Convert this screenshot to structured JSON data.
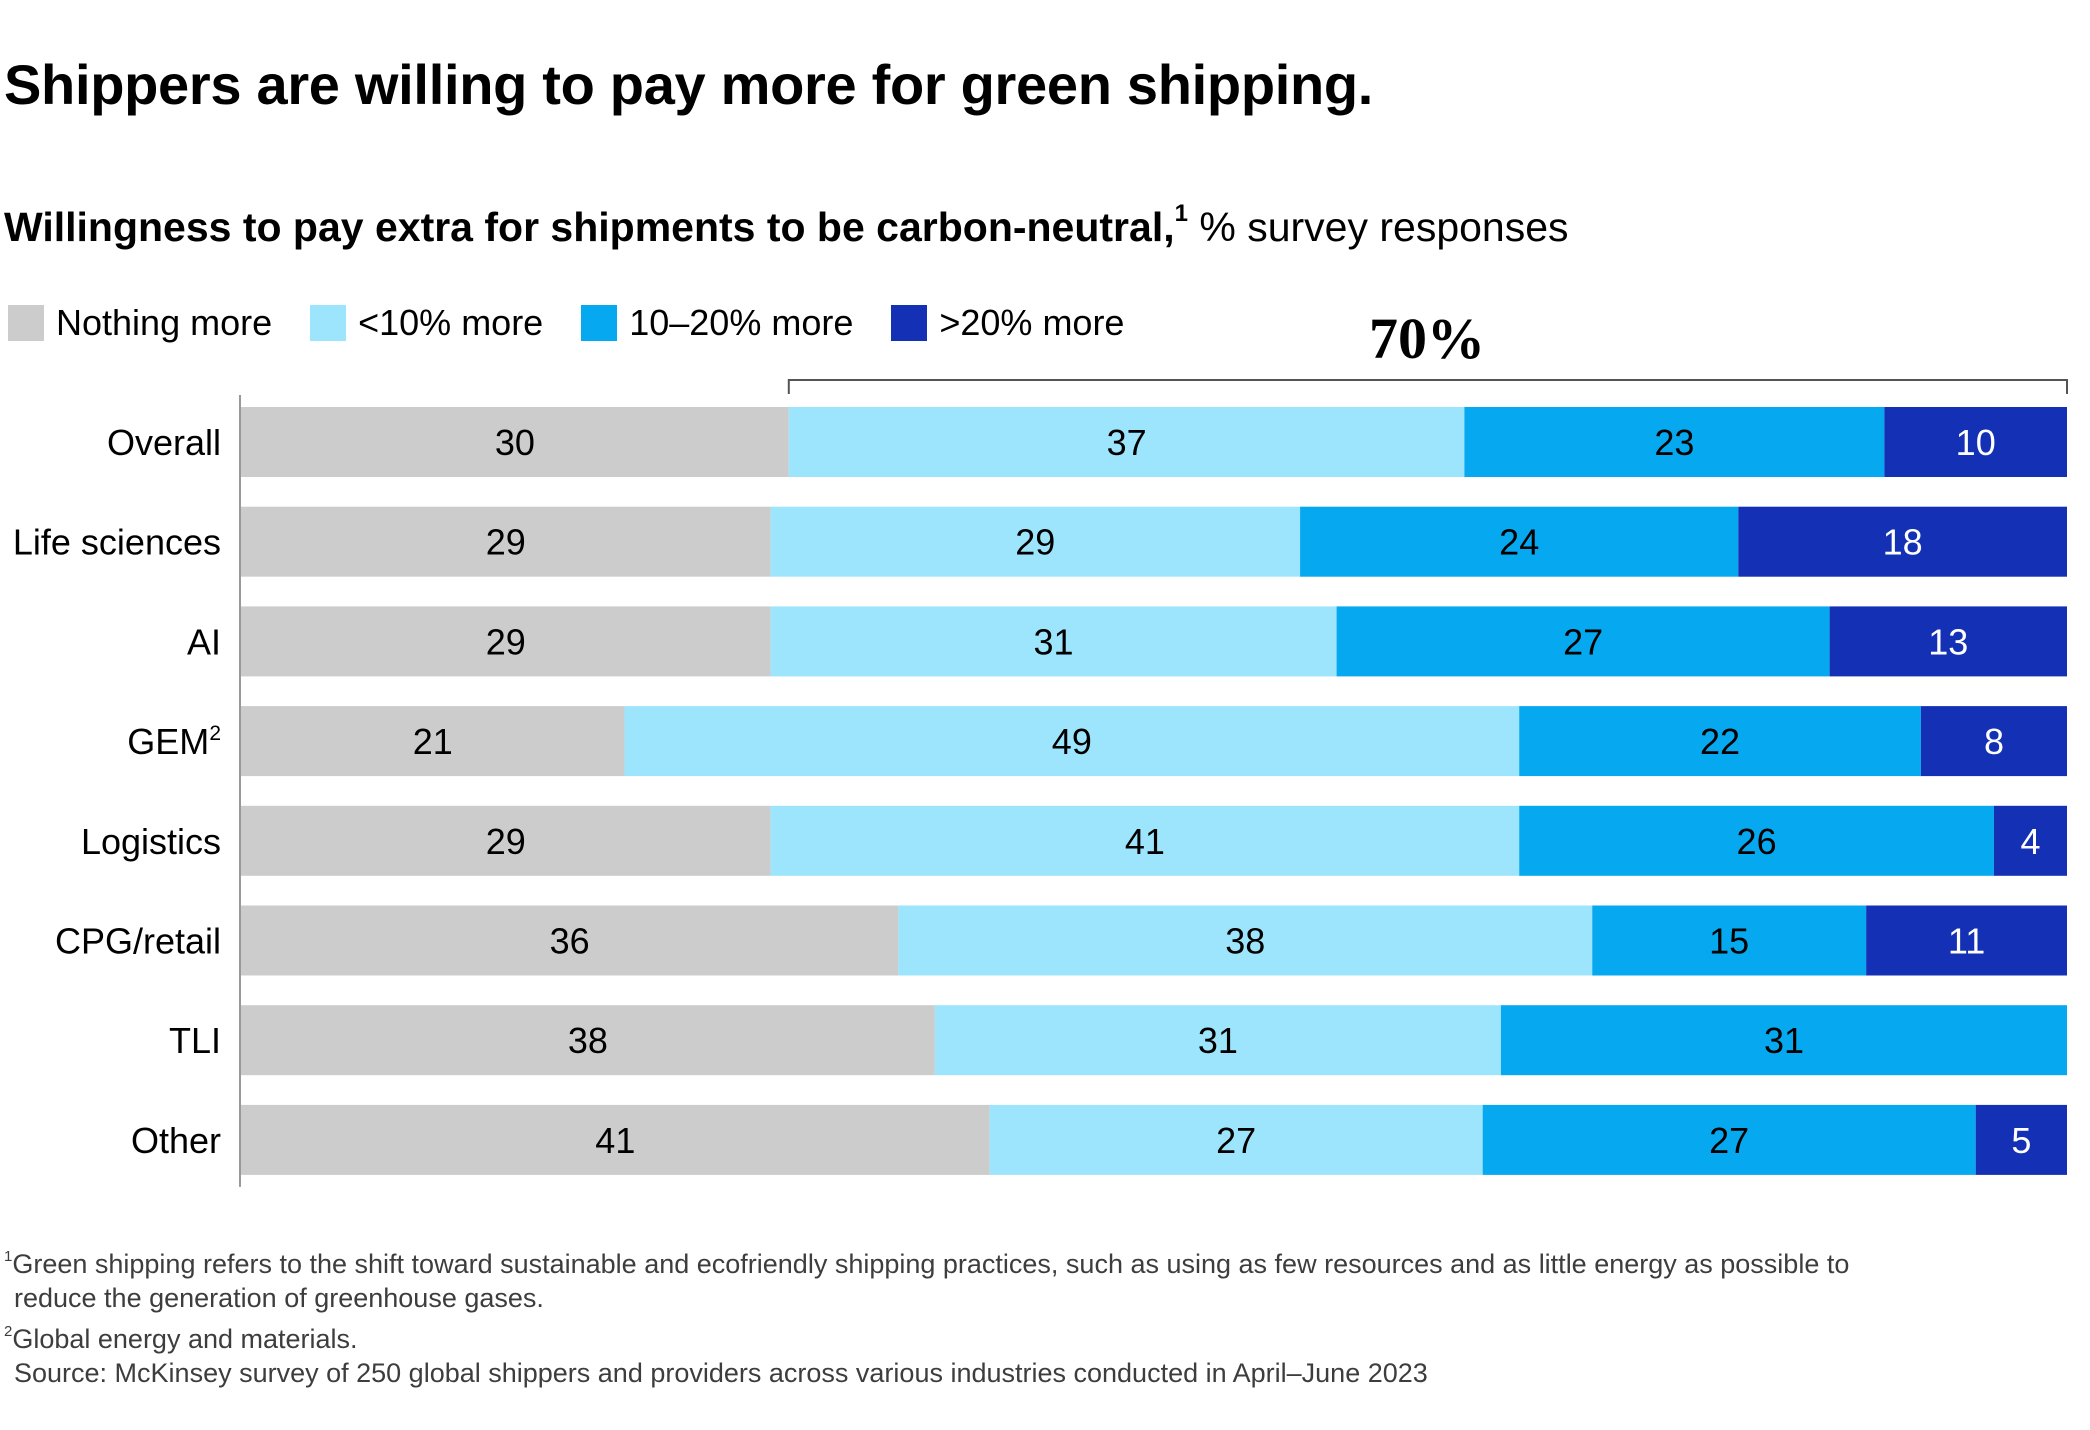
{
  "chart_data": {
    "type": "bar",
    "orientation": "horizontal",
    "stacked": true,
    "title": "Shippers are willing to pay more for green shipping.",
    "subtitle_bold": "Willingness to pay extra for shipments to be carbon-neutral,",
    "subtitle_footnote": "1",
    "subtitle_unit": "% survey responses",
    "categories": [
      "Overall",
      "Life sciences",
      "AI",
      "GEM",
      "Logistics",
      "CPG/retail",
      "TLI",
      "Other"
    ],
    "category_footnotes": {
      "GEM": "2"
    },
    "series": [
      {
        "name": "Nothing more",
        "color": "#cccccc",
        "values": [
          30,
          29,
          29,
          21,
          29,
          36,
          38,
          41
        ]
      },
      {
        "name": "<10% more",
        "color": "#9de5fc",
        "values": [
          37,
          29,
          31,
          49,
          41,
          38,
          31,
          27
        ]
      },
      {
        "name": "10–20% more",
        "color": "#06a8ef",
        "values": [
          23,
          24,
          27,
          22,
          26,
          15,
          31,
          27
        ]
      },
      {
        "name": ">20% more",
        "color": "#1431b6",
        "values": [
          10,
          18,
          13,
          8,
          4,
          11,
          0,
          5
        ]
      }
    ],
    "annotation": {
      "label": "70%",
      "spans_series": [
        "<10% more",
        "10–20% more",
        ">20% more"
      ],
      "row": "Overall"
    },
    "xlim": [
      0,
      100
    ],
    "legend_position": "top-left",
    "grid": false
  },
  "footnotes": {
    "note1_marker": "1",
    "note1_line1": "Green shipping refers to the shift toward sustainable and ecofriendly shipping practices, such as using as few resources and as little energy as possible to",
    "note1_line2": "reduce the generation of greenhouse gases.",
    "note2_marker": "2",
    "note2": "Global energy and materials.",
    "source": "Source: McKinsey survey of 250 global shippers and providers across various industries conducted in April–June 2023"
  }
}
